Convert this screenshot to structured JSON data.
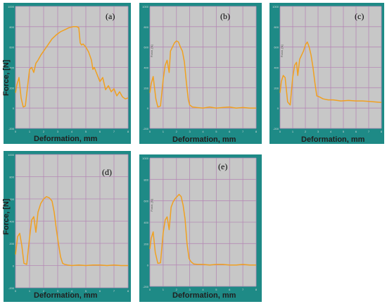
{
  "chart_data": [
    {
      "type": "line",
      "panel_label": "(a)",
      "xlabel": "Deformation, mm",
      "ylabel": "Force, [N]",
      "xlim": [
        0,
        8
      ],
      "ylim": [
        -200,
        1000
      ],
      "x_ticks": [
        0,
        1,
        2,
        3,
        4,
        5,
        6,
        7,
        8
      ],
      "y_ticks": [
        -200,
        0,
        200,
        400,
        600,
        800,
        1000
      ],
      "grid": true,
      "line_color": "#f0a020",
      "series": [
        {
          "x": [
            0,
            0.1,
            0.25,
            0.4,
            0.55,
            0.7,
            0.85,
            1.0,
            1.15,
            1.3,
            1.45,
            1.6,
            1.8,
            2.0,
            2.3,
            2.6,
            2.9,
            3.2,
            3.5,
            3.8,
            4.1,
            4.35,
            4.5,
            4.6,
            4.7,
            4.8,
            5.0,
            5.2,
            5.4,
            5.5,
            5.6,
            5.8,
            6.0,
            6.2,
            6.4,
            6.6,
            6.8,
            7.0,
            7.2,
            7.4,
            7.6,
            7.8,
            8.0
          ],
          "y": [
            150,
            230,
            300,
            100,
            10,
            20,
            200,
            380,
            400,
            350,
            440,
            470,
            520,
            560,
            620,
            680,
            720,
            750,
            770,
            790,
            800,
            800,
            790,
            640,
            620,
            630,
            600,
            550,
            470,
            380,
            400,
            330,
            260,
            300,
            180,
            220,
            160,
            190,
            120,
            160,
            110,
            90,
            100
          ]
        }
      ]
    },
    {
      "type": "line",
      "panel_label": "(b)",
      "xlabel": "Deformation, mm",
      "ylabel": "Force, [N]",
      "xlim": [
        0,
        8
      ],
      "ylim": [
        -200,
        1000
      ],
      "x_ticks": [
        0,
        1,
        2,
        3,
        4,
        5,
        6,
        7,
        8
      ],
      "y_ticks": [
        -200,
        0,
        200,
        400,
        600,
        800,
        1000
      ],
      "grid": true,
      "line_color": "#f0a020",
      "series": [
        {
          "x": [
            0,
            0.1,
            0.25,
            0.45,
            0.6,
            0.8,
            1.0,
            1.15,
            1.3,
            1.45,
            1.55,
            1.7,
            1.85,
            2.0,
            2.15,
            2.3,
            2.45,
            2.6,
            2.75,
            2.9,
            3.0,
            3.2,
            3.5,
            4.0,
            4.5,
            5.0,
            5.5,
            6.0,
            6.5,
            7.0,
            7.5,
            8.0
          ],
          "y": [
            150,
            240,
            310,
            90,
            10,
            20,
            280,
            420,
            470,
            350,
            560,
            600,
            640,
            660,
            650,
            600,
            560,
            450,
            250,
            80,
            30,
            10,
            5,
            0,
            10,
            0,
            5,
            10,
            0,
            5,
            0,
            0
          ]
        }
      ]
    },
    {
      "type": "line",
      "panel_label": "(c)",
      "xlabel": "Deformation, mm",
      "ylabel": "Force, [N]",
      "xlim": [
        0,
        8
      ],
      "ylim": [
        -200,
        1000
      ],
      "x_ticks": [
        0,
        1,
        2,
        3,
        4,
        5,
        6,
        7,
        8
      ],
      "y_ticks": [
        -200,
        0,
        200,
        400,
        600,
        800,
        1000
      ],
      "grid": true,
      "line_color": "#f0a020",
      "series": [
        {
          "x": [
            0,
            0.1,
            0.25,
            0.4,
            0.6,
            0.8,
            1.0,
            1.15,
            1.3,
            1.4,
            1.55,
            1.7,
            1.85,
            2.0,
            2.15,
            2.3,
            2.45,
            2.6,
            2.75,
            2.9,
            3.1,
            3.4,
            3.8,
            4.2,
            4.8,
            5.4,
            6.0,
            6.5,
            7.0,
            7.5,
            8.0
          ],
          "y": [
            150,
            260,
            320,
            300,
            60,
            30,
            300,
            420,
            450,
            320,
            480,
            520,
            560,
            620,
            650,
            600,
            520,
            400,
            250,
            120,
            110,
            90,
            80,
            80,
            70,
            75,
            70,
            70,
            65,
            60,
            55
          ]
        }
      ]
    },
    {
      "type": "line",
      "panel_label": "(d)",
      "xlabel": "Deformation, mm",
      "ylabel": "Force, [N]",
      "xlim": [
        0,
        8
      ],
      "ylim": [
        -200,
        1000
      ],
      "x_ticks": [
        0,
        1,
        2,
        3,
        4,
        5,
        6,
        7,
        8
      ],
      "y_ticks": [
        -200,
        0,
        200,
        400,
        600,
        800,
        1000
      ],
      "grid": true,
      "line_color": "#f0a020",
      "series": [
        {
          "x": [
            0,
            0.15,
            0.3,
            0.45,
            0.6,
            0.8,
            1.0,
            1.15,
            1.3,
            1.45,
            1.6,
            1.8,
            2.0,
            2.2,
            2.4,
            2.6,
            2.75,
            2.9,
            3.05,
            3.2,
            3.35,
            3.5,
            3.7,
            4.0,
            4.5,
            5.0,
            5.5,
            6.0,
            6.5,
            7.0,
            7.5,
            8.0
          ],
          "y": [
            100,
            260,
            290,
            180,
            20,
            10,
            250,
            410,
            440,
            300,
            480,
            560,
            600,
            620,
            610,
            580,
            480,
            330,
            200,
            80,
            20,
            10,
            5,
            0,
            5,
            0,
            5,
            5,
            0,
            5,
            0,
            0
          ]
        }
      ]
    },
    {
      "type": "line",
      "panel_label": "(e)",
      "xlabel": "Deformation, mm",
      "ylabel": "Force, [N]",
      "xlim": [
        0,
        8
      ],
      "ylim": [
        -200,
        1000
      ],
      "x_ticks": [
        0,
        1,
        2,
        3,
        4,
        5,
        6,
        7,
        8
      ],
      "y_ticks": [
        -200,
        0,
        200,
        400,
        600,
        800,
        1000
      ],
      "grid": true,
      "line_color": "#f0a020",
      "series": [
        {
          "x": [
            0,
            0.1,
            0.25,
            0.4,
            0.6,
            0.8,
            1.0,
            1.15,
            1.3,
            1.45,
            1.6,
            1.75,
            1.9,
            2.05,
            2.2,
            2.35,
            2.5,
            2.65,
            2.8,
            2.95,
            3.1,
            3.3,
            3.6,
            4.0,
            4.5,
            5.0,
            5.5,
            6.0,
            6.5,
            7.0,
            7.5,
            8.0
          ],
          "y": [
            150,
            250,
            310,
            120,
            15,
            20,
            300,
            420,
            450,
            330,
            540,
            590,
            620,
            640,
            660,
            640,
            560,
            430,
            200,
            60,
            30,
            10,
            5,
            5,
            0,
            5,
            5,
            0,
            0,
            5,
            0,
            0
          ]
        }
      ]
    }
  ]
}
